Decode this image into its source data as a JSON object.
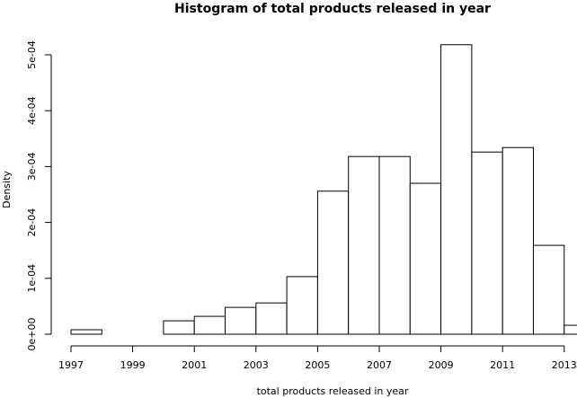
{
  "chart_data": {
    "type": "histogram",
    "title": "Histogram of total products released in year",
    "x_label": "total products released in year",
    "y_label": "Density",
    "bins": [
      1997,
      1998,
      1999,
      2000,
      2001,
      2002,
      2003,
      2004,
      2005,
      2006,
      2007,
      2008,
      2009,
      2010,
      2011,
      2012,
      2013,
      2014
    ],
    "values": [
      8e-06,
      0,
      0,
      2.4e-05,
      3.2e-05,
      4.8e-05,
      5.6e-05,
      0.000103,
      0.000256,
      0.000318,
      0.000318,
      0.00027,
      0.000518,
      0.000326,
      0.000334,
      0.000159,
      1.6e-05
    ],
    "color": "#ffffff",
    "xlim": [
      1996.32,
      2014.68
    ],
    "ylim": [
      0,
      0.00054
    ],
    "xticks": [
      1997,
      1999,
      2001,
      2003,
      2005,
      2007,
      2009,
      2011,
      2013
    ],
    "yticks": [
      {
        "value": 0,
        "label": "0e+00"
      },
      {
        "value": 0.0001,
        "label": "1e-04"
      },
      {
        "value": 0.0002,
        "label": "2e-04"
      },
      {
        "value": 0.0003,
        "label": "3e-04"
      },
      {
        "value": 0.0004,
        "label": "4e-04"
      },
      {
        "value": 0.0005,
        "label": "5e-04"
      }
    ]
  }
}
